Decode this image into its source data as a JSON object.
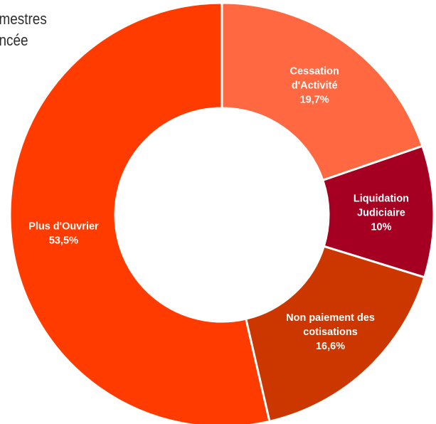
{
  "caption": {
    "line_1": "rimestres",
    "line_2": "oncée"
  },
  "chart_data": {
    "type": "pie",
    "variant": "donut",
    "title": "",
    "slices": [
      {
        "label": "Cessation d'Activité",
        "label_lines": [
          "Cessation",
          "d'Activité"
        ],
        "value_label": "19,7%",
        "value": 19.7,
        "color": "#ff6840"
      },
      {
        "label": "Liquidation Judiciaire",
        "label_lines": [
          "Liquidation",
          "Judiciaire"
        ],
        "value_label": "10%",
        "value": 10,
        "color": "#a50021"
      },
      {
        "label": "Non paiement des cotisations",
        "label_lines": [
          "Non paiement des",
          "cotisations"
        ],
        "value_label": "16,6%",
        "value": 16.6,
        "color": "#cc3700"
      },
      {
        "label": "Plus d'Ouvrier",
        "label_lines": [
          "Plus d'Ouvrier"
        ],
        "value_label": "53,5%",
        "value": 53.5,
        "color": "#ff3b00"
      }
    ],
    "start_angle_deg": 0,
    "direction": "clockwise",
    "legend": "none"
  }
}
